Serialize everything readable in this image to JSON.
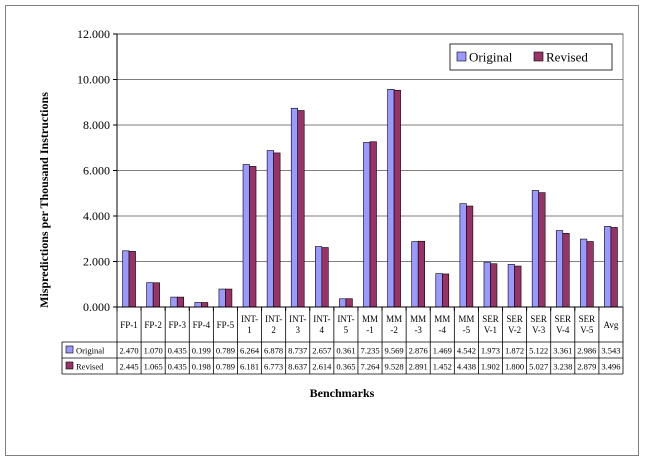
{
  "colors": {
    "original_fill": "#9999ff",
    "revised_fill": "#993366",
    "bar_stroke": "#000000",
    "grid": "#000000",
    "plot_bg": "#ffffff"
  },
  "chart_data": {
    "type": "bar",
    "xlabel": "Benchmarks",
    "ylabel": "Mispredictions per Thousand Instructions",
    "ylim": [
      0,
      12
    ],
    "yticks": [
      "0.000",
      "2.000",
      "4.000",
      "6.000",
      "8.000",
      "10.000",
      "12.000"
    ],
    "grid": true,
    "legend_position": "top-right",
    "categories": [
      [
        "FP-1"
      ],
      [
        "FP-2"
      ],
      [
        "FP-3"
      ],
      [
        "FP-4"
      ],
      [
        "FP-5"
      ],
      [
        "INT-",
        "1"
      ],
      [
        "INT-",
        "2"
      ],
      [
        "INT-",
        "3"
      ],
      [
        "INT-",
        "4"
      ],
      [
        "INT-",
        "5"
      ],
      [
        "MM",
        "-1"
      ],
      [
        "MM",
        "-2"
      ],
      [
        "MM",
        "-3"
      ],
      [
        "MM",
        "-4"
      ],
      [
        "MM",
        "-5"
      ],
      [
        "SER",
        "V-1"
      ],
      [
        "SER",
        "V-2"
      ],
      [
        "SER",
        "V-3"
      ],
      [
        "SER",
        "V-4"
      ],
      [
        "SER",
        "V-5"
      ],
      [
        "Avg"
      ]
    ],
    "series": [
      {
        "name": "Original",
        "values": [
          2.47,
          1.07,
          0.435,
          0.199,
          0.789,
          6.264,
          6.878,
          8.737,
          2.657,
          0.361,
          7.235,
          9.569,
          2.876,
          1.469,
          4.542,
          1.973,
          1.872,
          5.122,
          3.361,
          2.986,
          3.543
        ],
        "labels": [
          "2.470",
          "1.070",
          "0.435",
          "0.199",
          "0.789",
          "6.264",
          "6.878",
          "8.737",
          "2.657",
          "0.361",
          "7.235",
          "9.569",
          "2.876",
          "1.469",
          "4.542",
          "1.973",
          "1.872",
          "5.122",
          "3.361",
          "2.986",
          "3.543"
        ]
      },
      {
        "name": "Revised",
        "values": [
          2.445,
          1.065,
          0.435,
          0.198,
          0.789,
          6.181,
          6.773,
          8.637,
          2.614,
          0.365,
          7.264,
          9.528,
          2.891,
          1.452,
          4.438,
          1.902,
          1.8,
          5.027,
          3.238,
          2.879,
          3.496
        ],
        "labels": [
          "2.445",
          "1.065",
          "0.435",
          "0.198",
          "0.789",
          "6.181",
          "6.773",
          "8.637",
          "2.614",
          "0.365",
          "7.264",
          "9.528",
          "2.891",
          "1.452",
          "4.438",
          "1.902",
          "1.800",
          "5.027",
          "3.238",
          "2.879",
          "3.496"
        ]
      }
    ]
  }
}
